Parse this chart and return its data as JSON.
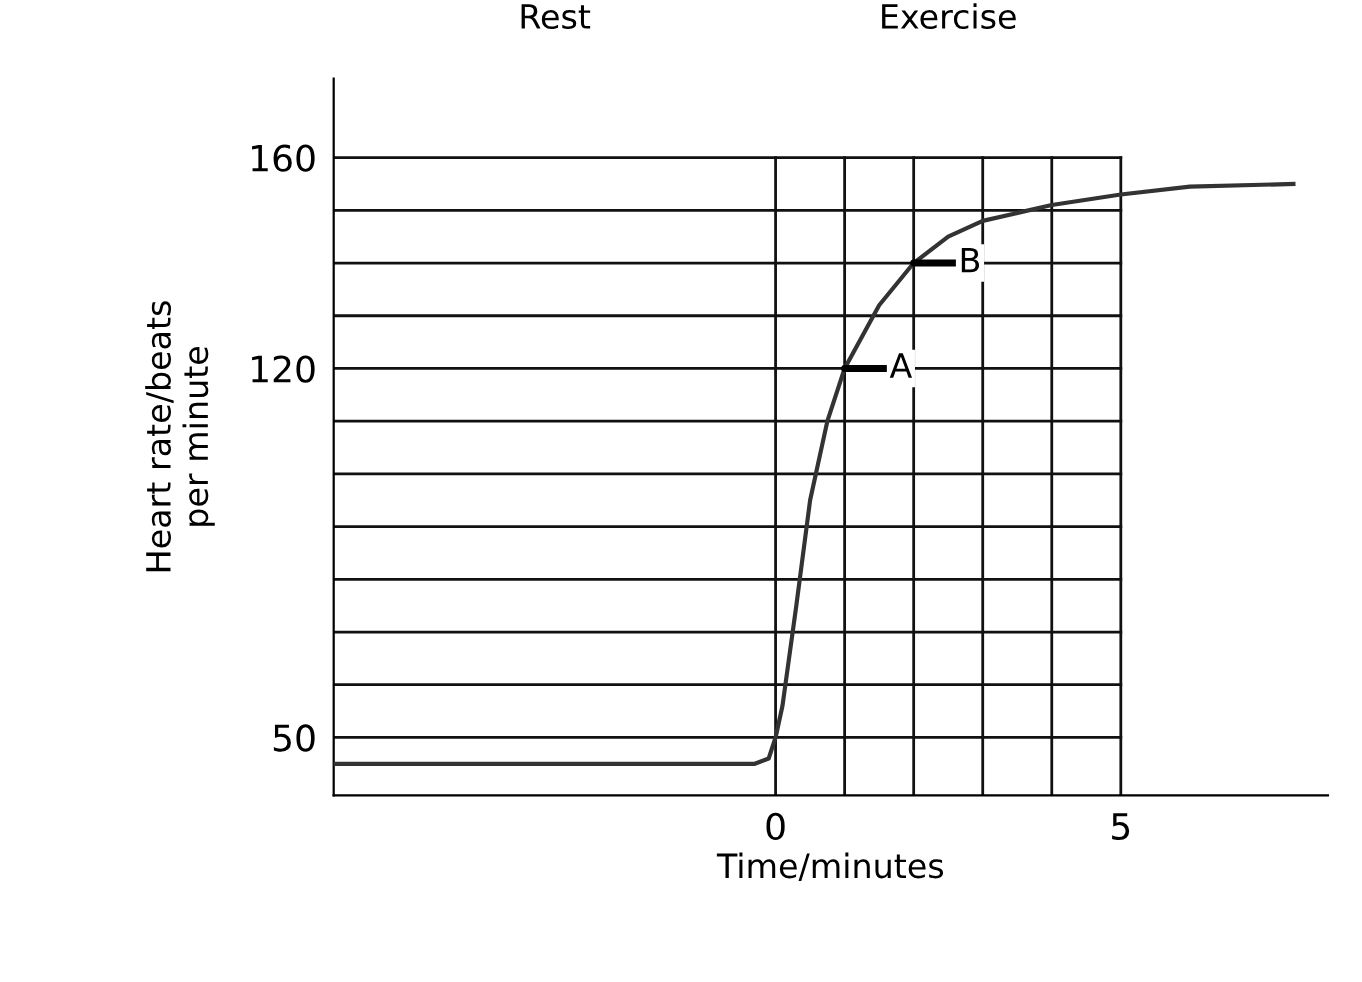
{
  "chart_data": {
    "type": "line",
    "xlabel": "Time/minutes",
    "ylabel": "Heart rate/beats\nper minute",
    "x": [
      -6.4,
      -0.3,
      -0.1,
      0,
      0.1,
      0.3,
      0.5,
      0.75,
      1,
      1.5,
      2,
      2.5,
      3,
      4,
      5,
      6,
      7.5
    ],
    "series": [
      {
        "color": "#333333",
        "values": [
          45,
          45,
          46,
          50,
          56,
          75,
          95,
          110,
          120,
          132,
          140,
          145,
          148,
          151,
          153,
          154.5,
          155
        ]
      }
    ],
    "xlim": [
      -6.4,
      8
    ],
    "ylim": [
      39,
      175
    ],
    "xticks": [
      0,
      {
        "value": 1,
        "label": null
      },
      {
        "value": 2,
        "label": null
      },
      {
        "value": 3,
        "label": null
      },
      {
        "value": 4,
        "label": null
      },
      5
    ],
    "yticks": [
      50,
      {
        "value": 60,
        "label": null
      },
      {
        "value": 70,
        "label": null
      },
      {
        "value": 80,
        "label": null
      },
      {
        "value": 90,
        "label": null
      },
      {
        "value": 100,
        "label": null
      },
      {
        "value": 110,
        "label": null
      },
      120,
      {
        "value": 130,
        "label": null
      },
      {
        "value": 140,
        "label": null
      },
      {
        "value": 150,
        "label": null
      },
      160
    ],
    "grid": true,
    "marker": "none",
    "line_style": "solid",
    "annotations": [
      "Rest",
      "Exercise",
      {
        "text": "A",
        "x": 1,
        "y": 120
      },
      {
        "text": "B",
        "x": 2,
        "y": 140
      }
    ]
  }
}
